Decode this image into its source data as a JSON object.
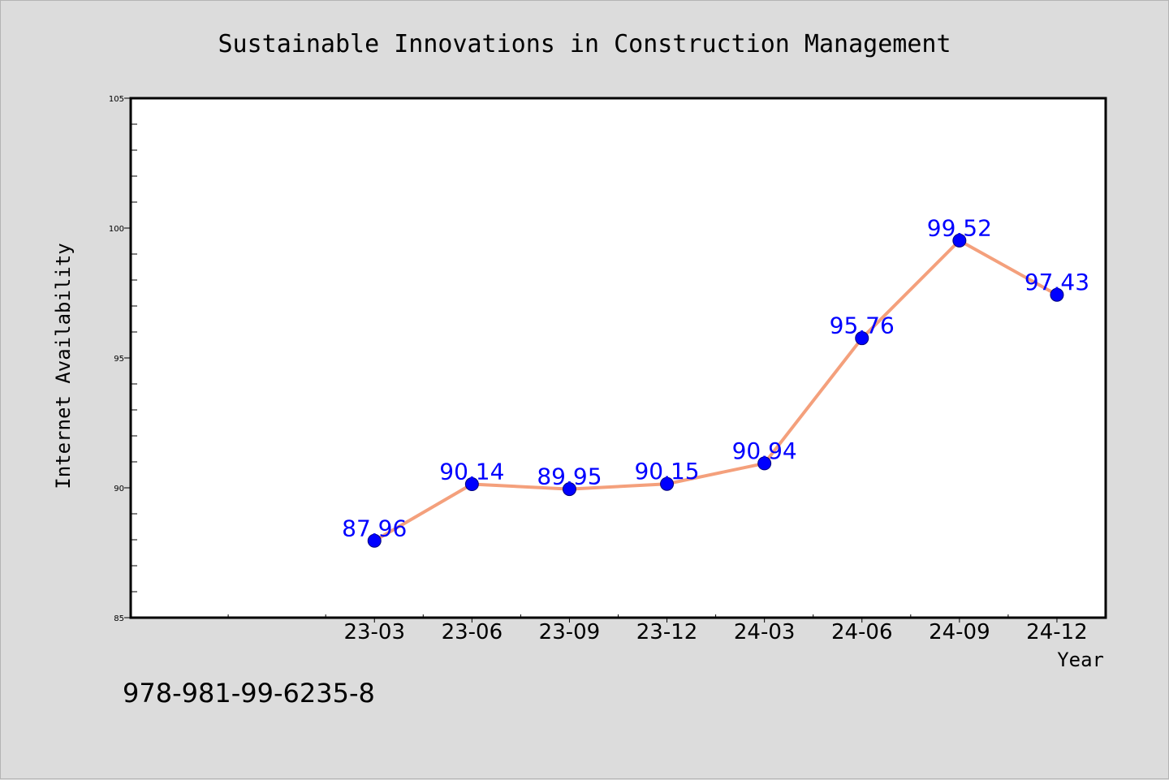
{
  "chart_data": {
    "type": "line",
    "title": "Sustainable Innovations in Construction Management",
    "xlabel": "Year",
    "ylabel": "Internet Availability",
    "categories": [
      "23-03",
      "23-06",
      "23-09",
      "23-12",
      "24-03",
      "24-06",
      "24-09",
      "24-12"
    ],
    "series": [
      {
        "values": [
          87.96,
          90.14,
          89.95,
          90.15,
          90.94,
          95.76,
          99.52,
          97.43
        ],
        "data_labels": [
          "87.96",
          "90.14",
          "89.95",
          "90.15",
          "90.94",
          "95.76",
          "99.52",
          "97.43"
        ]
      }
    ],
    "ylim": [
      85,
      105
    ],
    "yticks": [
      "85",
      "90",
      "95",
      "100",
      "105"
    ],
    "grid": false,
    "legend": "none",
    "colors": {
      "line": "#f4a07c",
      "marker": "#0000ff",
      "data_label": "#0000ff",
      "plot_background": "#ffffff",
      "page_background": "#dcdcdc"
    }
  },
  "footer": {
    "isbn": "978-981-99-6235-8"
  }
}
